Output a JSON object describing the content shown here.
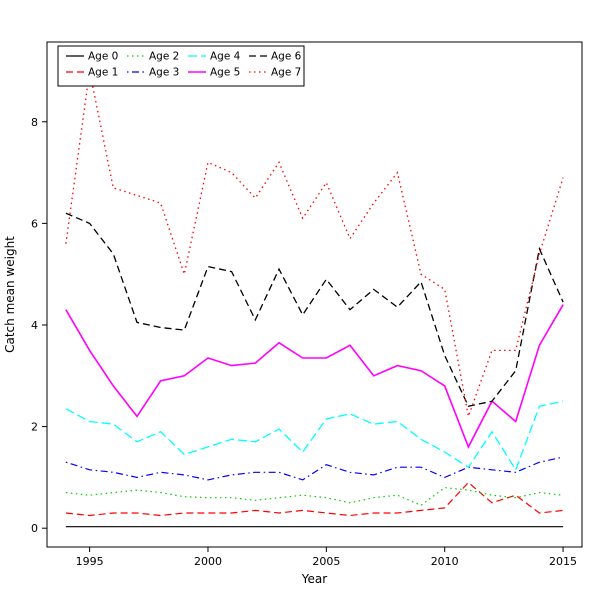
{
  "figure": {
    "xlabel": "Year",
    "ylabel": "Catch mean weight"
  },
  "chart_data": {
    "type": "line",
    "title": "",
    "xlabel": "Year",
    "ylabel": "Catch mean weight",
    "x": [
      1994,
      1995,
      1996,
      1997,
      1998,
      1999,
      2000,
      2001,
      2002,
      2003,
      2004,
      2005,
      2006,
      2007,
      2008,
      2009,
      2010,
      2011,
      2012,
      2013,
      2014,
      2015
    ],
    "x_ticks": [
      1995,
      2000,
      2005,
      2010,
      2015
    ],
    "y_ticks": [
      0,
      2,
      4,
      6,
      8
    ],
    "xlim": [
      1993.2,
      2015.8
    ],
    "ylim": [
      -0.37,
      9.57
    ],
    "grid": false,
    "legend_position": "top-left",
    "legend_columns": 4,
    "series": [
      {
        "name": "Age 0",
        "color": "#000000",
        "linetype": "solid",
        "width": 1.2,
        "values": [
          0.03,
          0.03,
          0.03,
          0.03,
          0.03,
          0.03,
          0.03,
          0.03,
          0.03,
          0.03,
          0.03,
          0.03,
          0.03,
          0.03,
          0.03,
          0.03,
          0.03,
          0.03,
          0.03,
          0.03,
          0.03,
          0.03
        ]
      },
      {
        "name": "Age 1",
        "color": "#FF0000",
        "linetype": "dashed",
        "width": 1.2,
        "values": [
          0.3,
          0.25,
          0.3,
          0.3,
          0.25,
          0.3,
          0.3,
          0.3,
          0.35,
          0.3,
          0.35,
          0.3,
          0.25,
          0.3,
          0.3,
          0.35,
          0.4,
          0.9,
          0.5,
          0.65,
          0.3,
          0.35
        ]
      },
      {
        "name": "Age 2",
        "color": "#00CD00",
        "linetype": "dotted",
        "width": 1.2,
        "values": [
          0.7,
          0.65,
          0.7,
          0.75,
          0.7,
          0.62,
          0.6,
          0.6,
          0.55,
          0.6,
          0.65,
          0.6,
          0.5,
          0.6,
          0.65,
          0.45,
          0.8,
          0.75,
          0.65,
          0.6,
          0.7,
          0.65
        ]
      },
      {
        "name": "Age 3",
        "color": "#0000FF",
        "linetype": "dashdot",
        "width": 1.2,
        "values": [
          1.3,
          1.15,
          1.1,
          1.0,
          1.1,
          1.05,
          0.95,
          1.05,
          1.1,
          1.1,
          0.95,
          1.25,
          1.1,
          1.05,
          1.2,
          1.2,
          1.0,
          1.2,
          1.15,
          1.1,
          1.3,
          1.4
        ]
      },
      {
        "name": "Age 4",
        "color": "#00FFFF",
        "linetype": "longdash",
        "width": 1.3,
        "values": [
          2.35,
          2.1,
          2.05,
          1.7,
          1.9,
          1.45,
          1.6,
          1.75,
          1.7,
          1.95,
          1.5,
          2.15,
          2.25,
          2.05,
          2.1,
          1.75,
          1.5,
          1.2,
          1.9,
          1.15,
          2.4,
          2.5
        ]
      },
      {
        "name": "Age 5",
        "color": "#FF00FF",
        "linetype": "solid",
        "width": 1.6,
        "values": [
          4.3,
          3.5,
          2.8,
          2.2,
          2.9,
          3.0,
          3.35,
          3.2,
          3.25,
          3.65,
          3.35,
          3.35,
          3.6,
          3.0,
          3.2,
          3.1,
          2.8,
          1.6,
          2.5,
          2.1,
          3.6,
          4.4
        ]
      },
      {
        "name": "Age 6",
        "color": "#000000",
        "linetype": "dashed",
        "width": 1.3,
        "values": [
          6.2,
          6.0,
          5.4,
          4.05,
          3.95,
          3.9,
          5.15,
          5.05,
          4.1,
          5.1,
          4.2,
          4.9,
          4.3,
          4.7,
          4.35,
          4.85,
          3.4,
          2.4,
          2.5,
          3.1,
          5.5,
          4.45
        ]
      },
      {
        "name": "Age 7",
        "color": "#FF0000",
        "linetype": "dotted",
        "width": 1.3,
        "values": [
          5.6,
          9.0,
          6.7,
          6.55,
          6.4,
          5.0,
          7.2,
          7.0,
          6.5,
          7.2,
          6.1,
          6.8,
          5.7,
          6.4,
          7.0,
          5.0,
          4.7,
          2.2,
          3.5,
          3.5,
          5.4,
          6.9
        ]
      }
    ]
  }
}
